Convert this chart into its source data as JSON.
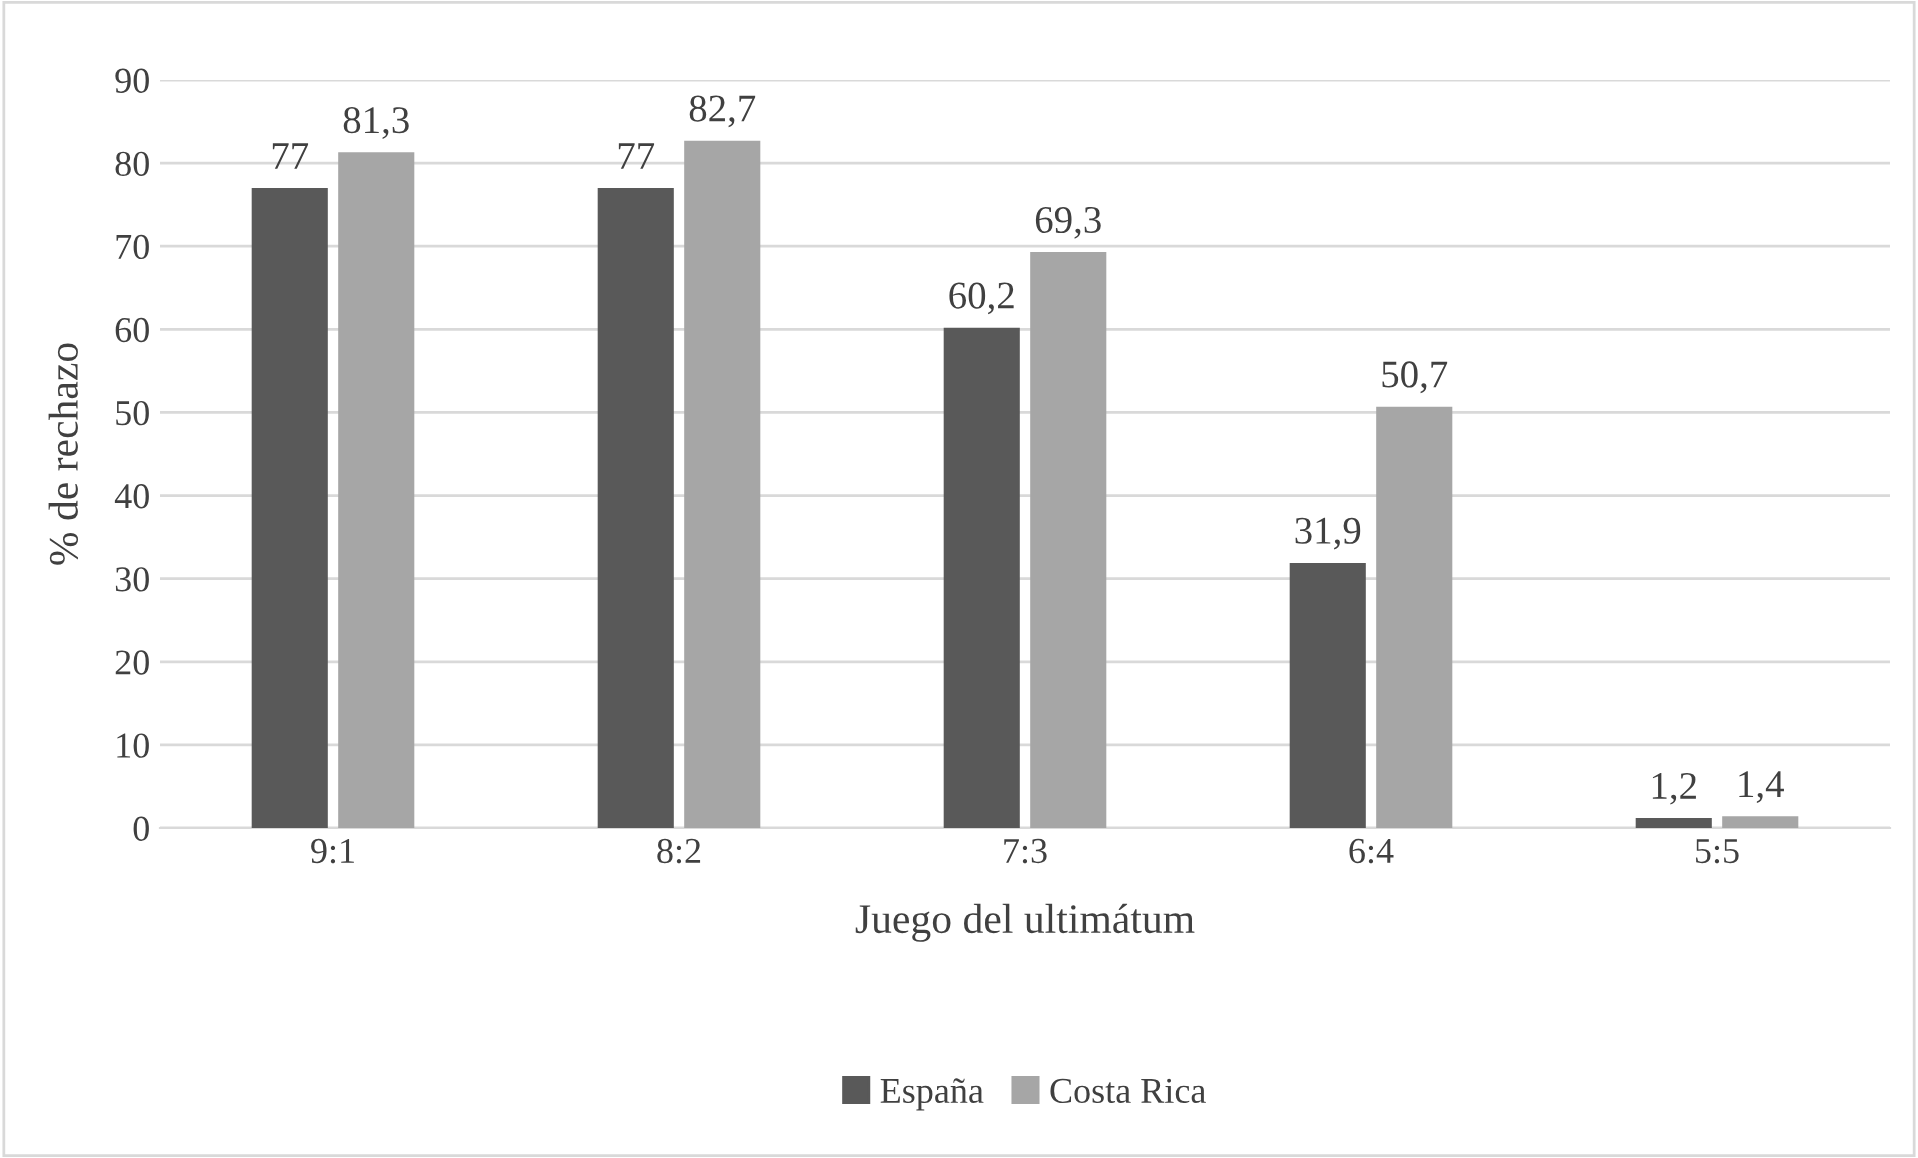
{
  "chart_data": {
    "type": "bar",
    "xlabel": "Juego del ultimátum",
    "ylabel": "% de rechazo",
    "categories": [
      "9:1",
      "8:2",
      "7:3",
      "6:4",
      "5:5"
    ],
    "series": [
      {
        "name": "España",
        "color": "#595959",
        "values": [
          77,
          77,
          60.2,
          31.9,
          1.2
        ],
        "value_labels": [
          "77",
          "77",
          "60,2",
          "31,9",
          "1,2"
        ]
      },
      {
        "name": "Costa Rica",
        "color": "#a6a6a6",
        "values": [
          81.3,
          82.7,
          69.3,
          50.7,
          1.4
        ],
        "value_labels": [
          "81,3",
          "82,7",
          "69,3",
          "50,7",
          "1,4"
        ]
      }
    ],
    "ylim": [
      0,
      90
    ],
    "yticks": [
      0,
      10,
      20,
      30,
      40,
      50,
      60,
      70,
      80,
      90
    ],
    "grid": "y",
    "legend": "bottom"
  }
}
